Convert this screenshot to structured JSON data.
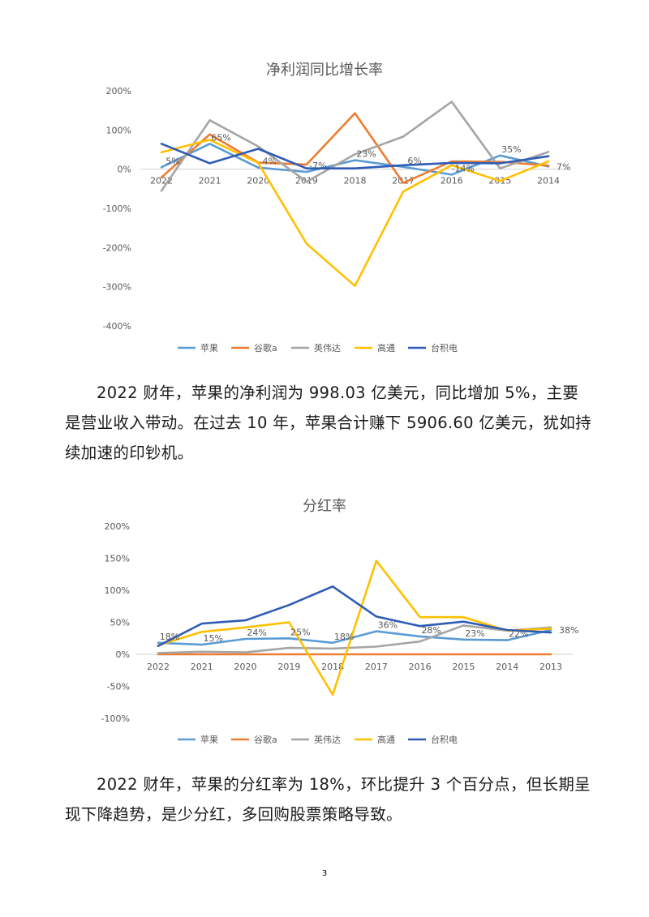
{
  "page": {
    "number": "3"
  },
  "paragraphs": [
    "2022 财年，苹果的净利润为 998.03 亿美元，同比增加 5%，主要是营业收入带动。在过去 10 年，苹果合计赚下 5906.60 亿美元，犹如持续加速的印钞机。",
    "2022 财年，苹果的分红率为 18%，环比提升 3 个百分点，但长期呈现下降趋势，是少分红，多回购股票策略导致。"
  ],
  "chart_data": [
    {
      "type": "line",
      "title": "净利润同比增长率",
      "categories": [
        "2022",
        "2021",
        "2020",
        "2019",
        "2018",
        "2017",
        "2016",
        "2015",
        "2014"
      ],
      "ylim": [
        -400,
        200
      ],
      "yticks": [
        -400,
        -300,
        -200,
        -100,
        0,
        100,
        200
      ],
      "ytick_labels": [
        "-400%",
        "-300%",
        "-200%",
        "-100%",
        "0%",
        "100%",
        "200%"
      ],
      "grid": false,
      "legend_position": "bottom",
      "series": [
        {
          "name": "苹果",
          "color": "#5B9BD5",
          "values": [
            5,
            65,
            4,
            -7,
            23,
            6,
            -14,
            35,
            7
          ],
          "data_labels": [
            "5%",
            "65%",
            "4%",
            "-7%",
            "23%",
            "6%",
            "-14%",
            "35%",
            "7%"
          ]
        },
        {
          "name": "谷歌a",
          "color": "#ED7D31",
          "values": [
            -21,
            89,
            17,
            12,
            143,
            -35,
            20,
            19,
            9
          ]
        },
        {
          "name": "英伟达",
          "color": "#A5A5A5",
          "values": [
            -55,
            125,
            58,
            -32,
            38,
            83,
            172,
            2,
            44
          ]
        },
        {
          "name": "高通",
          "color": "#FFC000",
          "values": [
            43,
            75,
            16,
            -190,
            -298,
            -57,
            10,
            -30,
            20
          ]
        },
        {
          "name": "台积电",
          "color": "#2F5CB6",
          "values": [
            65,
            15,
            52,
            2,
            2,
            10,
            16,
            15,
            33
          ]
        }
      ]
    },
    {
      "type": "line",
      "title": "分红率",
      "categories": [
        "2022",
        "2021",
        "2020",
        "2019",
        "2018",
        "2017",
        "2016",
        "2015",
        "2014",
        "2013"
      ],
      "ylim": [
        -100,
        200
      ],
      "yticks": [
        -100,
        -50,
        0,
        50,
        100,
        150,
        200
      ],
      "ytick_labels": [
        "-100%",
        "-50%",
        "0%",
        "50%",
        "100%",
        "150%",
        "200%"
      ],
      "grid": false,
      "legend_position": "bottom",
      "series": [
        {
          "name": "苹果",
          "color": "#5B9BD5",
          "values": [
            18,
            15,
            24,
            25,
            18,
            36,
            28,
            23,
            22,
            38
          ],
          "data_labels": [
            "18%",
            "15%",
            "24%",
            "25%",
            "18%",
            "36%",
            "28%",
            "23%",
            "22%",
            "38%"
          ]
        },
        {
          "name": "谷歌a",
          "color": "#ED7D31",
          "values": [
            0,
            0,
            0,
            0,
            0,
            0,
            0,
            0,
            0,
            0
          ]
        },
        {
          "name": "英伟达",
          "color": "#A5A5A5",
          "values": [
            2,
            4,
            3,
            10,
            9,
            12,
            20,
            45,
            37,
            42
          ]
        },
        {
          "name": "高通",
          "color": "#FFC000",
          "values": [
            14,
            35,
            42,
            50,
            -63,
            146,
            58,
            58,
            37,
            40
          ]
        },
        {
          "name": "台积电",
          "color": "#2F5CB6",
          "values": [
            13,
            48,
            53,
            77,
            106,
            59,
            44,
            51,
            38,
            34
          ]
        }
      ]
    }
  ]
}
